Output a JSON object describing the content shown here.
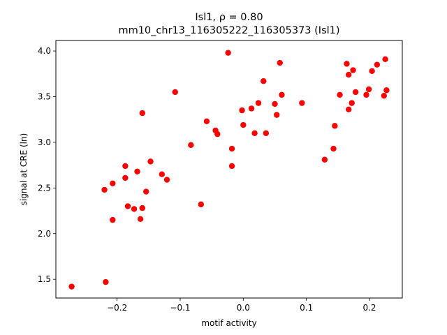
{
  "chart_data": {
    "type": "scatter",
    "title_lines": [
      "Isl1, ρ = 0.80",
      "mm10_chr13_116305222_116305373 (Isl1)"
    ],
    "xlabel": "motif activity",
    "ylabel": "signal at CRE (ln)",
    "xlim": [
      -0.297,
      0.252
    ],
    "ylim": [
      1.295,
      4.115
    ],
    "xticks": [
      -0.2,
      -0.1,
      0.0,
      0.1,
      0.2
    ],
    "xtick_labels": [
      "−0.2",
      "−0.1",
      "0.0",
      "0.1",
      "0.2"
    ],
    "yticks": [
      1.5,
      2.0,
      2.5,
      3.0,
      3.5,
      4.0
    ],
    "ytick_labels": [
      "1.5",
      "2.0",
      "2.5",
      "3.0",
      "3.5",
      "4.0"
    ],
    "grid": false,
    "marker_color": "#ff0000",
    "points": [
      {
        "x": -0.272,
        "y": 1.42
      },
      {
        "x": -0.218,
        "y": 1.47
      },
      {
        "x": -0.22,
        "y": 2.48
      },
      {
        "x": -0.207,
        "y": 2.55
      },
      {
        "x": -0.207,
        "y": 2.15
      },
      {
        "x": -0.187,
        "y": 2.74
      },
      {
        "x": -0.187,
        "y": 2.61
      },
      {
        "x": -0.183,
        "y": 2.3
      },
      {
        "x": -0.173,
        "y": 2.27
      },
      {
        "x": -0.168,
        "y": 2.68
      },
      {
        "x": -0.163,
        "y": 2.16
      },
      {
        "x": -0.16,
        "y": 2.28
      },
      {
        "x": -0.16,
        "y": 3.32
      },
      {
        "x": -0.154,
        "y": 2.46
      },
      {
        "x": -0.147,
        "y": 2.79
      },
      {
        "x": -0.129,
        "y": 2.65
      },
      {
        "x": -0.121,
        "y": 2.59
      },
      {
        "x": -0.108,
        "y": 3.55
      },
      {
        "x": -0.083,
        "y": 2.97
      },
      {
        "x": -0.067,
        "y": 2.32
      },
      {
        "x": -0.058,
        "y": 3.23
      },
      {
        "x": -0.044,
        "y": 3.13
      },
      {
        "x": -0.041,
        "y": 3.09
      },
      {
        "x": -0.024,
        "y": 3.98
      },
      {
        "x": -0.018,
        "y": 2.93
      },
      {
        "x": -0.018,
        "y": 2.74
      },
      {
        "x": -0.002,
        "y": 3.35
      },
      {
        "x": 0.0,
        "y": 3.19
      },
      {
        "x": 0.013,
        "y": 3.37
      },
      {
        "x": 0.018,
        "y": 3.1
      },
      {
        "x": 0.024,
        "y": 3.43
      },
      {
        "x": 0.032,
        "y": 3.67
      },
      {
        "x": 0.036,
        "y": 3.1
      },
      {
        "x": 0.05,
        "y": 3.42
      },
      {
        "x": 0.053,
        "y": 3.3
      },
      {
        "x": 0.058,
        "y": 3.87
      },
      {
        "x": 0.061,
        "y": 3.52
      },
      {
        "x": 0.093,
        "y": 3.43
      },
      {
        "x": 0.129,
        "y": 2.81
      },
      {
        "x": 0.143,
        "y": 2.93
      },
      {
        "x": 0.145,
        "y": 3.18
      },
      {
        "x": 0.153,
        "y": 3.52
      },
      {
        "x": 0.164,
        "y": 3.86
      },
      {
        "x": 0.167,
        "y": 3.74
      },
      {
        "x": 0.167,
        "y": 3.36
      },
      {
        "x": 0.172,
        "y": 3.43
      },
      {
        "x": 0.174,
        "y": 3.79
      },
      {
        "x": 0.178,
        "y": 3.55
      },
      {
        "x": 0.195,
        "y": 3.52
      },
      {
        "x": 0.199,
        "y": 3.58
      },
      {
        "x": 0.204,
        "y": 3.78
      },
      {
        "x": 0.212,
        "y": 3.85
      },
      {
        "x": 0.223,
        "y": 3.51
      },
      {
        "x": 0.225,
        "y": 3.91
      },
      {
        "x": 0.227,
        "y": 3.57
      }
    ]
  }
}
